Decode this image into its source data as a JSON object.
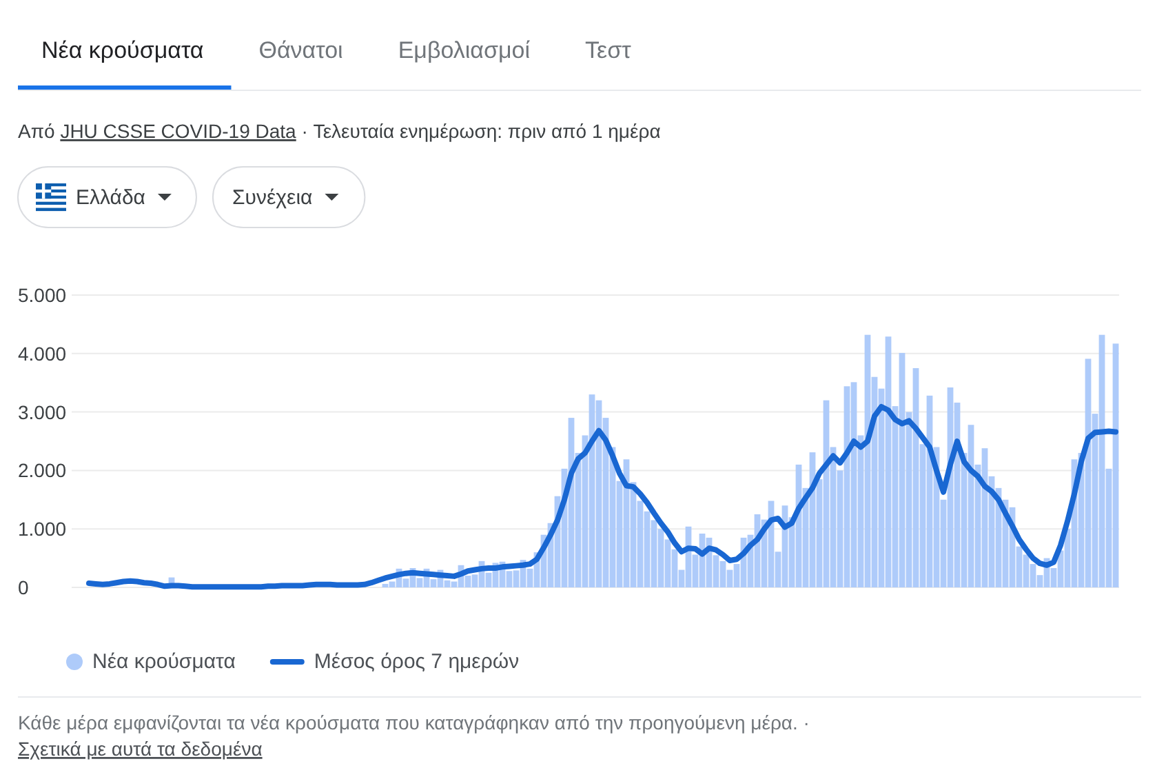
{
  "chart_data": {
    "type": "bar",
    "annotations": [
      "Νέα κρούσματα",
      "Θάνατοι",
      "Εμβολιασμοί",
      "Τεστ",
      "Από",
      "JHU CSSE COVID-19 Data",
      "· Τελευταία ενημέρωση: πριν από 1 ημέρα",
      "Ελλάδα",
      "Συνέχεια",
      "Κάθε μέρα εμφανίζονται τα νέα κρούσματα που καταγράφηκαν από την προηγούμενη μέρα. ·",
      "Σχετικά με αυτά τα δεδομένα"
    ],
    "categories": [
      null,
      null,
      null,
      null,
      null,
      null,
      null,
      null,
      null,
      null,
      null,
      null,
      null,
      null,
      null,
      null,
      null,
      null,
      null,
      null,
      null,
      null,
      null,
      null,
      null,
      null,
      null,
      null,
      null,
      null,
      null,
      null,
      null,
      null,
      null,
      null,
      null,
      null,
      null,
      null,
      null,
      null,
      null,
      null,
      null,
      null,
      null,
      null,
      null,
      null,
      null,
      null,
      null,
      null,
      null,
      null,
      null,
      null,
      null,
      null,
      null,
      null,
      null,
      null,
      null,
      null,
      null,
      null,
      null,
      null,
      null,
      null,
      null,
      null,
      null,
      null,
      null,
      null,
      null,
      null,
      null,
      null,
      null,
      null,
      null,
      null,
      null,
      null,
      null,
      null,
      null,
      null,
      null,
      null,
      null,
      null,
      null,
      null,
      null,
      null,
      null,
      null,
      null,
      null,
      null,
      null,
      null,
      null,
      null,
      null,
      null,
      null,
      null,
      null,
      null,
      null,
      null,
      null,
      null,
      null,
      null,
      null,
      null,
      null,
      null,
      null,
      null,
      null,
      null,
      null,
      null,
      null,
      null,
      null,
      null,
      null,
      null,
      null,
      null,
      null,
      null,
      null,
      null,
      null,
      null,
      null,
      null,
      null,
      null,
      null
    ],
    "series": [
      {
        "name": "Νέα κρούσματα",
        "color": "#aecbfa",
        "values": [
          null,
          null,
          null,
          null,
          null,
          null,
          null,
          null,
          null,
          null,
          null,
          null,
          170,
          null,
          null,
          null,
          null,
          null,
          null,
          null,
          null,
          null,
          null,
          null,
          null,
          null,
          null,
          null,
          null,
          null,
          null,
          null,
          null,
          null,
          null,
          null,
          null,
          null,
          null,
          null,
          null,
          null,
          null,
          60,
          100,
          320,
          150,
          330,
          160,
          320,
          140,
          300,
          120,
          100,
          380,
          200,
          220,
          450,
          250,
          420,
          440,
          280,
          290,
          470,
          320,
          600,
          900,
          1100,
          1560,
          2030,
          2900,
          2300,
          2600,
          3300,
          3200,
          2900,
          2400,
          1820,
          2190,
          1800,
          1480,
          1300,
          1150,
          1000,
          820,
          650,
          300,
          1040,
          560,
          920,
          850,
          550,
          450,
          300,
          400,
          850,
          900,
          1250,
          1160,
          1480,
          610,
          1400,
          1200,
          2100,
          1700,
          2310,
          1850,
          3200,
          2400,
          2000,
          3440,
          3510,
          2600,
          4320,
          3600,
          3400,
          4290,
          3100,
          4010,
          3000,
          3750,
          2450,
          3280,
          2400,
          1500,
          3420,
          3160,
          2300,
          2780,
          2100,
          2380,
          1900,
          1700,
          1500,
          1370,
          700,
          560,
          400,
          210,
          500,
          330,
          630,
          1000,
          2190,
          2300,
          3910,
          2970,
          4320,
          2030,
          4170
        ]
      },
      {
        "name": "Μέσος όρος 7 ημερών",
        "type": "line",
        "color": "#1967d2",
        "values": [
          70,
          60,
          50,
          60,
          80,
          100,
          110,
          100,
          80,
          70,
          50,
          20,
          30,
          30,
          20,
          10,
          10,
          10,
          10,
          10,
          10,
          10,
          10,
          10,
          10,
          10,
          20,
          20,
          30,
          30,
          30,
          30,
          40,
          50,
          50,
          50,
          40,
          40,
          40,
          40,
          50,
          80,
          120,
          160,
          190,
          220,
          240,
          250,
          240,
          230,
          220,
          210,
          200,
          190,
          230,
          280,
          300,
          320,
          330,
          330,
          350,
          360,
          370,
          380,
          400,
          480,
          680,
          900,
          1150,
          1500,
          1950,
          2200,
          2300,
          2500,
          2680,
          2520,
          2250,
          1950,
          1740,
          1720,
          1600,
          1450,
          1270,
          1100,
          950,
          760,
          610,
          670,
          660,
          570,
          670,
          640,
          560,
          460,
          480,
          580,
          720,
          820,
          1000,
          1150,
          1180,
          1030,
          1100,
          1350,
          1530,
          1700,
          1950,
          2100,
          2250,
          2130,
          2300,
          2500,
          2400,
          2500,
          2930,
          3090,
          3030,
          2870,
          2800,
          2850,
          2720,
          2560,
          2400,
          2000,
          1630,
          2100,
          2500,
          2150,
          2000,
          1900,
          1730,
          1640,
          1500,
          1270,
          1050,
          820,
          650,
          500,
          410,
          380,
          430,
          720,
          1130,
          1600,
          2150,
          2550,
          2650,
          2660,
          2670,
          2660
        ]
      }
    ],
    "ylim": [
      0,
      5000
    ],
    "yticks": [
      0,
      {
        "value": 1000,
        "label": "1.000"
      },
      {
        "value": 2000,
        "label": "2.000"
      },
      {
        "value": 3000,
        "label": "3.000"
      },
      {
        "value": 4000,
        "label": "4.000"
      },
      {
        "value": 5000,
        "label": "5.000"
      }
    ],
    "grid": "y",
    "legend": "bottom left",
    "tick_labels": "y"
  }
}
